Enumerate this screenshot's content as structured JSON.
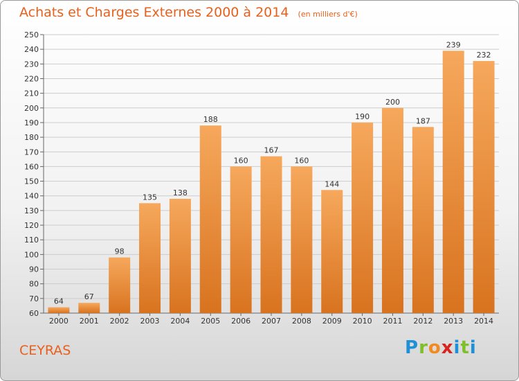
{
  "header": {
    "title": "Achats et Charges Externes 2000 à 2014",
    "subtitle": "(en milliers d'€)"
  },
  "footer": {
    "town": "CEYRAS",
    "logo_letters": [
      "P",
      "r",
      "o",
      "x",
      "i",
      "t",
      "i"
    ],
    "logo_colors": [
      "#1f8fd6",
      "#7fbf2a",
      "#f28a1d",
      "#d8231e",
      "#1f8fd6",
      "#7fbf2a",
      "#1f8fd6"
    ]
  },
  "colors": {
    "bar_top": "#f6a85c",
    "bar_bottom": "#d8731f",
    "grid": "#cccccc",
    "axis": "#666666",
    "text": "#333333",
    "accent": "#e8601c"
  },
  "chart_data": {
    "type": "bar",
    "title": "Achats et Charges Externes 2000 à 2014",
    "subtitle": "(en milliers d'€)",
    "categories": [
      "2000",
      "2001",
      "2002",
      "2003",
      "2004",
      "2005",
      "2006",
      "2007",
      "2008",
      "2009",
      "2010",
      "2011",
      "2012",
      "2013",
      "2014"
    ],
    "values": [
      64,
      67,
      98,
      135,
      138,
      188,
      160,
      167,
      160,
      144,
      190,
      200,
      187,
      239,
      232
    ],
    "yticks": [
      60,
      70,
      80,
      90,
      100,
      110,
      120,
      130,
      140,
      150,
      160,
      170,
      180,
      190,
      200,
      210,
      220,
      230,
      240,
      250
    ],
    "ylim": [
      60,
      250
    ],
    "grid": true,
    "data_labels": true
  }
}
